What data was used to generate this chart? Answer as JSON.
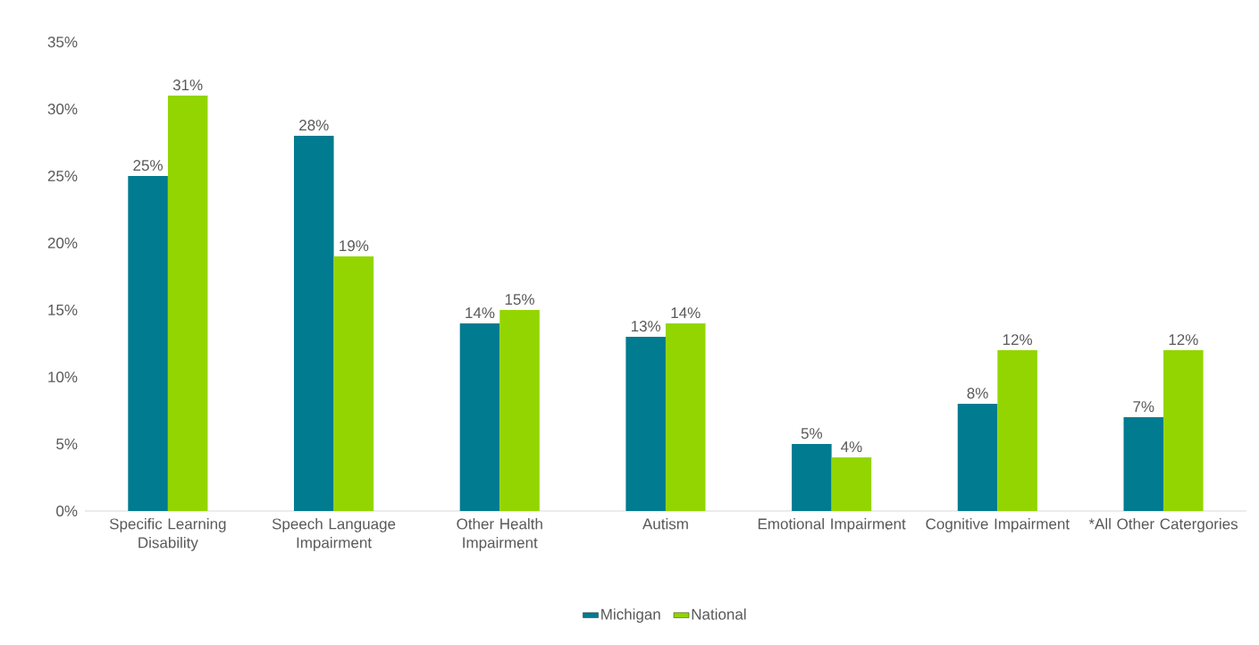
{
  "chart_data": {
    "type": "bar",
    "categories": [
      "Specific Learning Disability",
      "Speech Language Impairment",
      "Other Health Impairment",
      "Autism",
      "Emotional Impairment",
      "Cognitive Impairment",
      "*All Other Catergories"
    ],
    "series": [
      {
        "name": "Michigan",
        "color": "#007b8f",
        "values": [
          25,
          28,
          14,
          13,
          5,
          8,
          7
        ],
        "value_labels": [
          "25%",
          "28%",
          "14%",
          "13%",
          "5%",
          "8%",
          "7%"
        ]
      },
      {
        "name": "National",
        "color": "#93d500",
        "values": [
          31,
          19,
          15,
          14,
          4,
          12,
          12
        ],
        "value_labels": [
          "31%",
          "19%",
          "15%",
          "14%",
          "4%",
          "12%",
          "12%"
        ]
      }
    ],
    "ylim": [
      0,
      35
    ],
    "yticks": [
      {
        "value": 0,
        "label": "0%"
      },
      {
        "value": 5,
        "label": "5%"
      },
      {
        "value": 10,
        "label": "10%"
      },
      {
        "value": 15,
        "label": "15%"
      },
      {
        "value": 20,
        "label": "20%"
      },
      {
        "value": 25,
        "label": "25%"
      },
      {
        "value": 30,
        "label": "30%"
      },
      {
        "value": 35,
        "label": "35%"
      }
    ],
    "grid": false,
    "legend": "bottom"
  }
}
